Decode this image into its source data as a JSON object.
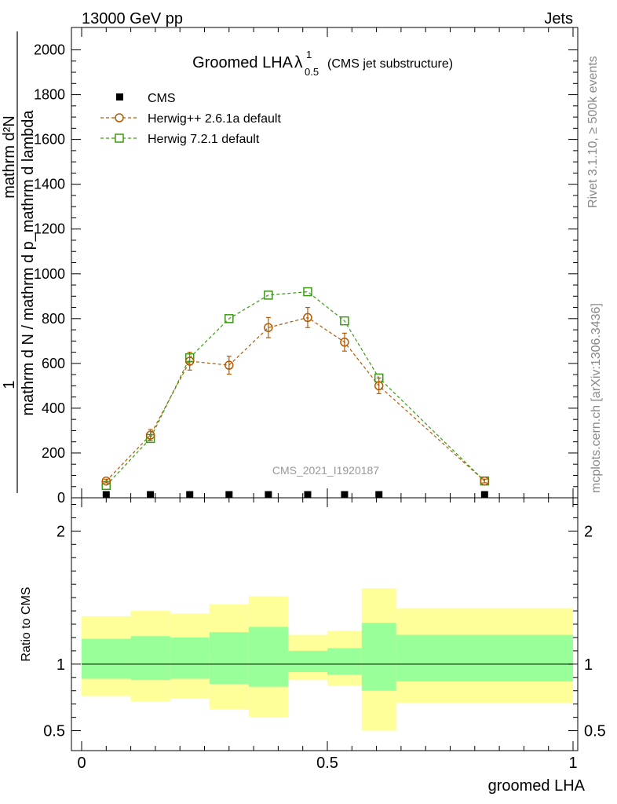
{
  "header": {
    "left": "13000 GeV pp",
    "right": "Jets"
  },
  "title": {
    "main": "Groomed LHA",
    "lambda": "λ",
    "sub": "0.5",
    "sup": "1",
    "note": "(CMS jet substructure)"
  },
  "side_labels": {
    "rivet": "Rivet 3.1.10, ≥ 500k events",
    "mcplots": "mcplots.cern.ch [arXiv:1306.3436]"
  },
  "watermark": "CMS_2021_I1920187",
  "ylabel": {
    "numerator": "1",
    "denominator": "mathrm d N / mathrm d p_mathrm d lambda",
    "overlay": "mathrm d²N"
  },
  "colors": {
    "cms": "#000000",
    "herwigpp": "#b35900",
    "herwig7": "#3a9a12",
    "band_outer": "#ffff99",
    "band_inner": "#99ff99"
  },
  "chart_data": [
    {
      "type": "scatter",
      "panel": "main",
      "xlim": [
        0,
        1
      ],
      "ylim": [
        0,
        2100
      ],
      "y_ticks": [
        0,
        200,
        400,
        600,
        800,
        1000,
        1200,
        1400,
        1600,
        1800,
        2000
      ],
      "legend_placement": "top-left",
      "series": [
        {
          "name": "CMS",
          "marker": "filled-square",
          "x": [
            0.05,
            0.14,
            0.22,
            0.3,
            0.38,
            0.46,
            0.535,
            0.605,
            0.82
          ],
          "y": [
            0,
            0,
            0,
            0,
            0,
            0,
            0,
            0,
            0
          ]
        },
        {
          "name": "Herwig++ 2.6.1a default",
          "marker": "open-circle",
          "line": "dashed",
          "x": [
            0.05,
            0.14,
            0.22,
            0.3,
            0.38,
            0.46,
            0.535,
            0.605,
            0.82
          ],
          "y": [
            75,
            280,
            610,
            592,
            760,
            805,
            695,
            500,
            75
          ],
          "yerr": [
            8,
            25,
            40,
            40,
            45,
            45,
            40,
            35,
            8
          ]
        },
        {
          "name": "Herwig 7.2.1 default",
          "marker": "open-square",
          "line": "dashed",
          "x": [
            0.05,
            0.14,
            0.22,
            0.3,
            0.38,
            0.46,
            0.535,
            0.605,
            0.82
          ],
          "y": [
            55,
            265,
            625,
            800,
            905,
            920,
            790,
            535,
            75
          ]
        }
      ]
    },
    {
      "type": "area",
      "panel": "ratio",
      "ylabel": "Ratio to CMS",
      "xlabel": "groomed LHA",
      "xlim": [
        0,
        1
      ],
      "ylim": [
        0.35,
        2.25
      ],
      "y_ticks": [
        0.5,
        1,
        2
      ],
      "x_ticks": [
        0,
        0.5,
        1
      ],
      "reference_line": 1,
      "bins": [
        {
          "x0": 0.0,
          "x1": 0.1,
          "outer": [
            0.76,
            1.36
          ],
          "inner": [
            0.89,
            1.19
          ]
        },
        {
          "x0": 0.1,
          "x1": 0.18,
          "outer": [
            0.72,
            1.4
          ],
          "inner": [
            0.88,
            1.21
          ]
        },
        {
          "x0": 0.18,
          "x1": 0.26,
          "outer": [
            0.74,
            1.38
          ],
          "inner": [
            0.89,
            1.2
          ]
        },
        {
          "x0": 0.26,
          "x1": 0.34,
          "outer": [
            0.66,
            1.45
          ],
          "inner": [
            0.85,
            1.24
          ]
        },
        {
          "x0": 0.34,
          "x1": 0.42,
          "outer": [
            0.6,
            1.51
          ],
          "inner": [
            0.83,
            1.28
          ]
        },
        {
          "x0": 0.42,
          "x1": 0.5,
          "outer": [
            0.88,
            1.22
          ],
          "inner": [
            0.94,
            1.1
          ]
        },
        {
          "x0": 0.5,
          "x1": 0.57,
          "outer": [
            0.84,
            1.25
          ],
          "inner": [
            0.92,
            1.12
          ]
        },
        {
          "x0": 0.57,
          "x1": 0.64,
          "outer": [
            0.5,
            1.57
          ],
          "inner": [
            0.8,
            1.31
          ]
        },
        {
          "x0": 0.64,
          "x1": 1.0,
          "outer": [
            0.71,
            1.42
          ],
          "inner": [
            0.87,
            1.22
          ]
        }
      ]
    }
  ]
}
